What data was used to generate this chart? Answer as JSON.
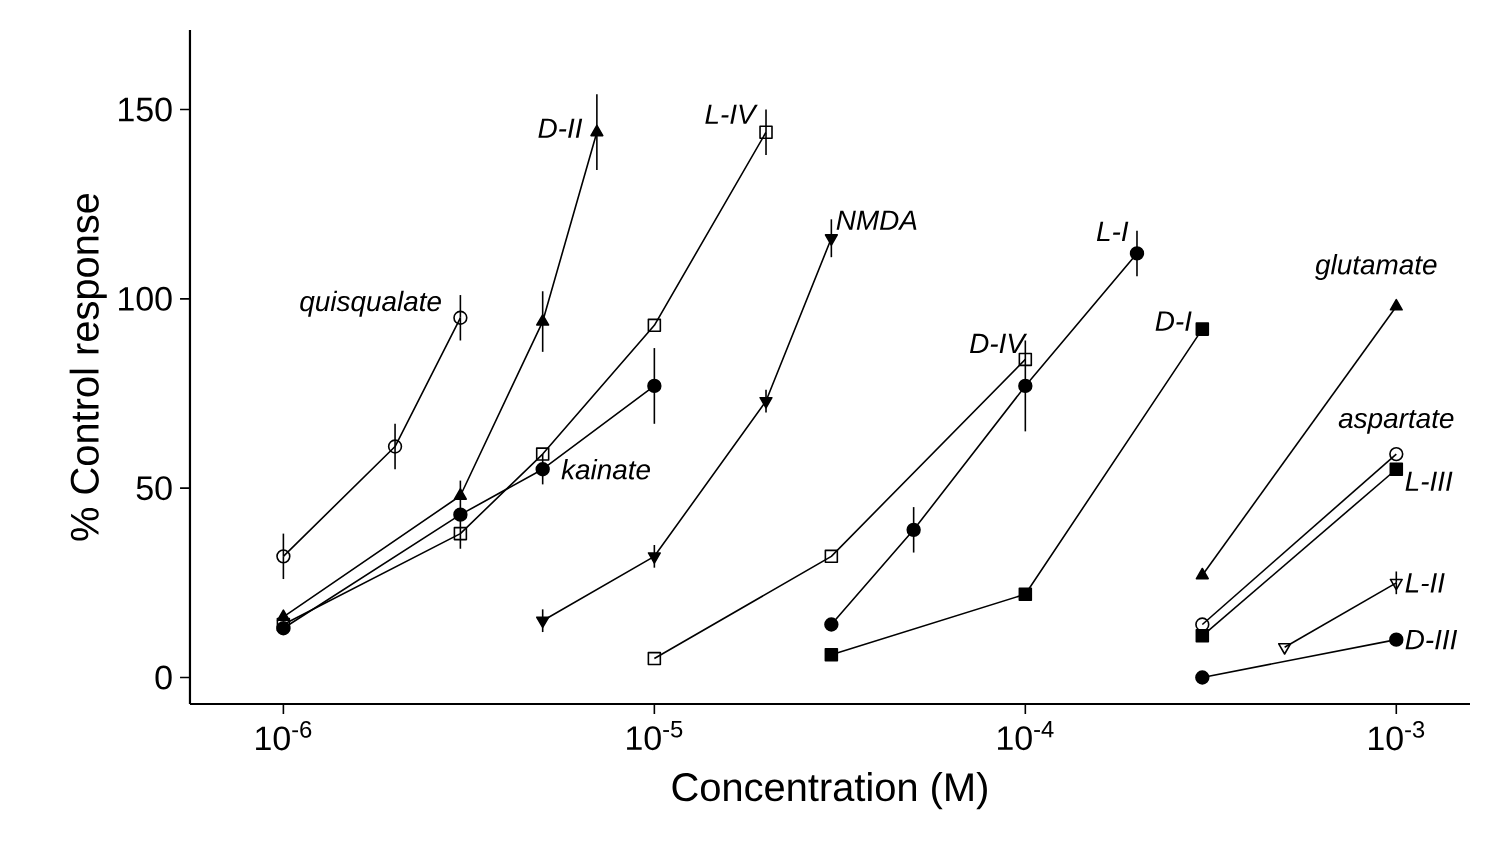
{
  "chart_data": {
    "type": "line",
    "xlabel": "Concentration  (M)",
    "ylabel": "% Control response",
    "log": "x",
    "legend": false,
    "grid": false,
    "line_style": "solid",
    "xlim": [
      5.6e-07,
      0.00158
    ],
    "ylim": [
      -7,
      171
    ],
    "xticks": [
      {
        "value": 1e-06,
        "label": "10$^{-6}$"
      },
      {
        "value": 1e-05,
        "label": "10$^{-5}$"
      },
      {
        "value": 0.0001,
        "label": "10$^{-4}$"
      },
      {
        "value": 0.001,
        "label": "10$^{-3}$"
      }
    ],
    "yticks": [
      0,
      50,
      100,
      150
    ],
    "series": [
      {
        "name": "quisqualate",
        "color": "#000000",
        "marker": "circle",
        "x": [
          1e-06,
          2e-06,
          3e-06
        ],
        "values": [
          32,
          61,
          95
        ],
        "errors": [
          6,
          6,
          6
        ]
      },
      {
        "name": "D-II",
        "color": "#000000",
        "marker": "triangle",
        "x": [
          1e-06,
          3e-06,
          5e-06,
          7e-06
        ],
        "values": [
          16,
          48,
          94,
          144
        ],
        "errors": [
          null,
          4,
          8,
          10
        ]
      },
      {
        "name": "L-IV",
        "color": "#000000",
        "marker": "square",
        "x": [
          1e-06,
          3e-06,
          5e-06,
          1e-05,
          2e-05
        ],
        "values": [
          14,
          38,
          59,
          93,
          144
        ],
        "errors": [
          null,
          4,
          null,
          null,
          6
        ]
      },
      {
        "name": "kainate",
        "color": "#000000",
        "marker": "circle",
        "x": [
          1e-06,
          3e-06,
          5e-06,
          1e-05
        ],
        "values": [
          13,
          43,
          55,
          77
        ],
        "errors": [
          null,
          null,
          4,
          10
        ]
      },
      {
        "name": "NMDA",
        "color": "#000000",
        "marker": "triangle_down",
        "x": [
          5e-06,
          1e-05,
          2e-05,
          3e-05
        ],
        "values": [
          15,
          32,
          73,
          116
        ],
        "errors": [
          3,
          3,
          3,
          5
        ]
      },
      {
        "name": "D-IV",
        "color": "#000000",
        "marker": "square",
        "x": [
          1e-05,
          3e-05,
          0.0001
        ],
        "values": [
          5,
          32,
          84
        ],
        "errors": [
          null,
          null,
          null
        ]
      },
      {
        "name": "L-I",
        "color": "#000000",
        "marker": "circle",
        "x": [
          3e-05,
          5e-05,
          0.0001,
          0.0002
        ],
        "values": [
          14,
          39,
          77,
          112
        ],
        "errors": [
          null,
          6,
          12,
          6
        ]
      },
      {
        "name": "D-I",
        "color": "#000000",
        "marker": "square",
        "x": [
          3e-05,
          0.0001,
          0.0003
        ],
        "values": [
          6,
          22,
          92
        ],
        "errors": [
          null,
          null,
          null
        ]
      },
      {
        "name": "glutamate",
        "color": "#000000",
        "marker": "triangle",
        "x": [
          0.0003,
          0.001
        ],
        "values": [
          27,
          98
        ],
        "errors": [
          null,
          null
        ]
      },
      {
        "name": "aspartate",
        "color": "#000000",
        "marker": "circle",
        "x": [
          0.0003,
          0.001
        ],
        "values": [
          14,
          59
        ],
        "errors": [
          null,
          null
        ]
      },
      {
        "name": "L-III",
        "color": "#000000",
        "marker": "square",
        "x": [
          0.0003,
          0.001
        ],
        "values": [
          11,
          55
        ],
        "errors": [
          null,
          null
        ]
      },
      {
        "name": "L-II",
        "color": "#000000",
        "marker": "triangle_down",
        "x": [
          0.0005,
          0.001
        ],
        "values": [
          8,
          25
        ],
        "errors": [
          null,
          3
        ]
      },
      {
        "name": "D-III",
        "color": "#000000",
        "marker": "circle",
        "x": [
          0.0003,
          0.001
        ],
        "values": [
          0,
          10
        ],
        "errors": [
          null,
          null
        ]
      }
    ]
  }
}
